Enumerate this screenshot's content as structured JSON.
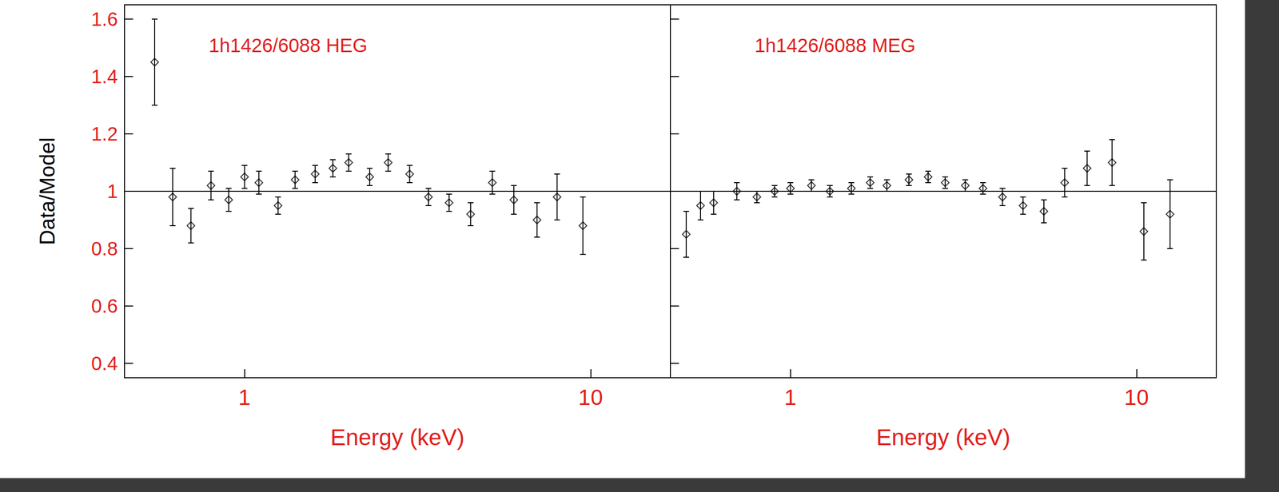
{
  "chart_data": [
    {
      "type": "scatter",
      "title": "1h1426/6088 HEG",
      "x_label": "Energy (keV)",
      "y_label": "Data/Model",
      "log": "x",
      "xlim": [
        0.45,
        17
      ],
      "xticks": [
        1,
        10
      ],
      "ylim": [
        0.35,
        1.65
      ],
      "yticks": [
        0.4,
        0.6,
        0.8,
        1,
        1.2,
        1.4,
        1.6
      ],
      "baseline": 1,
      "series": [
        {
          "color": "#000000",
          "marker": "diamond",
          "x": [
            0.55,
            0.62,
            0.7,
            0.8,
            0.9,
            1.0,
            1.1,
            1.25,
            1.4,
            1.6,
            1.8,
            2.0,
            2.3,
            2.6,
            3.0,
            3.4,
            3.9,
            4.5,
            5.2,
            6.0,
            7.0,
            8.0,
            9.5
          ],
          "values": [
            1.45,
            0.98,
            0.88,
            1.02,
            0.97,
            1.05,
            1.03,
            0.95,
            1.04,
            1.06,
            1.08,
            1.1,
            1.05,
            1.1,
            1.06,
            0.98,
            0.96,
            0.92,
            1.03,
            0.97,
            0.9,
            0.98,
            0.88
          ],
          "errors": [
            0.15,
            0.1,
            0.06,
            0.05,
            0.04,
            0.04,
            0.04,
            0.03,
            0.03,
            0.03,
            0.03,
            0.03,
            0.03,
            0.03,
            0.03,
            0.03,
            0.03,
            0.04,
            0.04,
            0.05,
            0.06,
            0.08,
            0.1
          ]
        }
      ]
    },
    {
      "type": "scatter",
      "title": "1h1426/6088 MEG",
      "x_label": "Energy (keV)",
      "log": "x",
      "xlim": [
        0.45,
        17
      ],
      "xticks": [
        1,
        10
      ],
      "ylim": [
        0.35,
        1.65
      ],
      "yticks": [
        0.4,
        0.6,
        0.8,
        1,
        1.2,
        1.4,
        1.6
      ],
      "baseline": 1,
      "tick_labels": "x",
      "series": [
        {
          "color": "#000000",
          "marker": "diamond",
          "x": [
            0.5,
            0.55,
            0.6,
            0.7,
            0.8,
            0.9,
            1.0,
            1.15,
            1.3,
            1.5,
            1.7,
            1.9,
            2.2,
            2.5,
            2.8,
            3.2,
            3.6,
            4.1,
            4.7,
            5.4,
            6.2,
            7.2,
            8.5,
            10.5,
            12.5
          ],
          "values": [
            0.85,
            0.95,
            0.96,
            1.0,
            0.98,
            1.0,
            1.01,
            1.02,
            1.0,
            1.01,
            1.03,
            1.02,
            1.04,
            1.05,
            1.03,
            1.02,
            1.01,
            0.98,
            0.95,
            0.93,
            1.03,
            1.08,
            1.1,
            0.86,
            0.92
          ],
          "errors": [
            0.08,
            0.05,
            0.04,
            0.03,
            0.02,
            0.02,
            0.02,
            0.02,
            0.02,
            0.02,
            0.02,
            0.02,
            0.02,
            0.02,
            0.02,
            0.02,
            0.02,
            0.03,
            0.03,
            0.04,
            0.05,
            0.06,
            0.08,
            0.1,
            0.12
          ]
        }
      ]
    }
  ]
}
